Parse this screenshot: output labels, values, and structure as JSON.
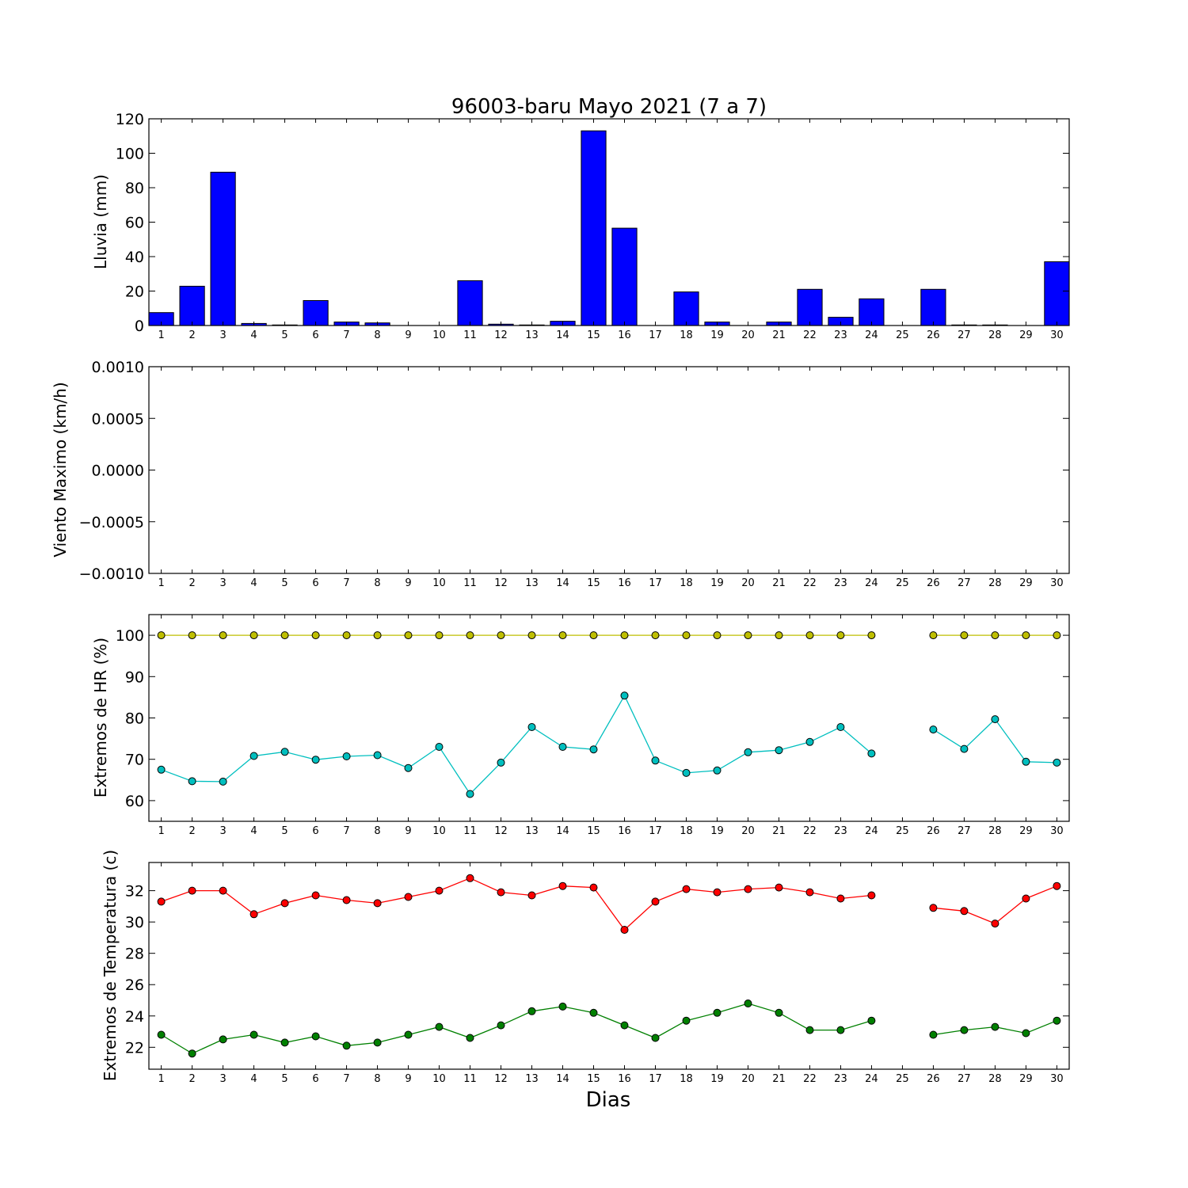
{
  "title": "96003-baru Mayo 2021  (7 a 7)",
  "xlabel": "Dias",
  "colors": {
    "bar": "#0000ff",
    "hr_max": "#bfbf00",
    "hr_min": "#00bfbf",
    "temp_max": "#ff0000",
    "temp_min": "#008000"
  },
  "chart_data": [
    {
      "type": "bar",
      "title": "96003-baru Mayo 2021  (7 a 7)",
      "ylabel": "Lluvia (mm)",
      "ylim": [
        0,
        120
      ],
      "yticks": [
        "0",
        "20",
        "40",
        "60",
        "80",
        "100",
        "120"
      ],
      "categories": [
        1,
        2,
        3,
        4,
        5,
        6,
        7,
        8,
        9,
        10,
        11,
        12,
        13,
        14,
        15,
        16,
        17,
        18,
        19,
        20,
        21,
        22,
        23,
        24,
        25,
        26,
        27,
        28,
        29,
        30
      ],
      "values": [
        7.5,
        22.8,
        89,
        1.2,
        0.3,
        14.5,
        2,
        1.5,
        0,
        0,
        26,
        0.8,
        0.3,
        2.5,
        113,
        56.5,
        0,
        19.5,
        2,
        0,
        2,
        21,
        4.8,
        15.5,
        0,
        21,
        0.3,
        0.3,
        0,
        37
      ]
    },
    {
      "type": "line",
      "ylabel": "Viento Maximo (km/h)",
      "ylim": [
        -0.001,
        0.001
      ],
      "yticks": [
        "−0.0010",
        "−0.0005",
        "0.0000",
        "0.0005",
        "0.0010"
      ],
      "x": [
        1,
        2,
        3,
        4,
        5,
        6,
        7,
        8,
        9,
        10,
        11,
        12,
        13,
        14,
        15,
        16,
        17,
        18,
        19,
        20,
        21,
        22,
        23,
        24,
        25,
        26,
        27,
        28,
        29,
        30
      ],
      "series": []
    },
    {
      "type": "line",
      "ylabel": "Extremos de HR (%)",
      "ylim": [
        55,
        105
      ],
      "yticks": [
        "60",
        "70",
        "80",
        "90",
        "100"
      ],
      "x": [
        1,
        2,
        3,
        4,
        5,
        6,
        7,
        8,
        9,
        10,
        11,
        12,
        13,
        14,
        15,
        16,
        17,
        18,
        19,
        20,
        21,
        22,
        23,
        24,
        25,
        26,
        27,
        28,
        29,
        30
      ],
      "series": [
        {
          "values": [
            100,
            100,
            100,
            100,
            100,
            100,
            100,
            100,
            100,
            100,
            100,
            100,
            100,
            100,
            100,
            100,
            100,
            100,
            100,
            100,
            100,
            100,
            100,
            100,
            null,
            100,
            100,
            100,
            100,
            100
          ]
        },
        {
          "values": [
            67.5,
            64.7,
            64.6,
            70.8,
            71.8,
            69.9,
            70.7,
            71,
            67.9,
            73,
            61.6,
            69.2,
            77.8,
            73,
            72.4,
            85.4,
            69.7,
            66.7,
            67.3,
            71.7,
            72.2,
            74.2,
            77.8,
            71.4,
            null,
            77.2,
            72.5,
            79.7,
            69.4,
            69.2
          ]
        }
      ]
    },
    {
      "type": "line",
      "ylabel": "Extremos de Temperatura (c)",
      "ylim": [
        20.6,
        33.8
      ],
      "yticks": [
        "22",
        "24",
        "26",
        "28",
        "30",
        "32"
      ],
      "x": [
        1,
        2,
        3,
        4,
        5,
        6,
        7,
        8,
        9,
        10,
        11,
        12,
        13,
        14,
        15,
        16,
        17,
        18,
        19,
        20,
        21,
        22,
        23,
        24,
        25,
        26,
        27,
        28,
        29,
        30
      ],
      "series": [
        {
          "values": [
            31.3,
            32,
            32,
            30.5,
            31.2,
            31.7,
            31.4,
            31.2,
            31.6,
            32,
            32.8,
            31.9,
            31.7,
            32.3,
            32.2,
            29.5,
            31.3,
            32.1,
            31.9,
            32.1,
            32.2,
            31.9,
            31.5,
            31.7,
            null,
            30.9,
            30.7,
            29.9,
            31.5,
            32.3
          ]
        },
        {
          "values": [
            22.8,
            21.6,
            22.5,
            22.8,
            22.3,
            22.7,
            22.1,
            22.3,
            22.8,
            23.3,
            22.6,
            23.4,
            24.3,
            24.6,
            24.2,
            23.4,
            22.6,
            23.7,
            24.2,
            24.8,
            24.2,
            23.1,
            23.1,
            23.7,
            null,
            22.8,
            23.1,
            23.3,
            22.9,
            23.7
          ]
        }
      ]
    }
  ]
}
